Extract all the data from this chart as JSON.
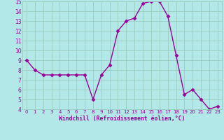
{
  "x": [
    0,
    1,
    2,
    3,
    4,
    5,
    6,
    7,
    8,
    9,
    10,
    11,
    12,
    13,
    14,
    15,
    16,
    17,
    18,
    19,
    20,
    21,
    22,
    23
  ],
  "y": [
    9.0,
    8.0,
    7.5,
    7.5,
    7.5,
    7.5,
    7.5,
    7.5,
    5.0,
    7.5,
    8.5,
    12.0,
    13.0,
    13.3,
    14.8,
    15.0,
    15.0,
    13.5,
    9.5,
    5.5,
    6.0,
    5.0,
    4.0,
    4.3
  ],
  "line_color": "#990099",
  "marker": "D",
  "marker_size": 2.5,
  "bg_color": "#b3e8e8",
  "grid_color": "#99ccbb",
  "xlabel": "Windchill (Refroidissement éolien,°C)",
  "xlabel_color": "#990099",
  "tick_color": "#990099",
  "ylim": [
    4,
    15
  ],
  "xlim": [
    -0.5,
    23.5
  ],
  "yticks": [
    4,
    5,
    6,
    7,
    8,
    9,
    10,
    11,
    12,
    13,
    14,
    15
  ],
  "figsize": [
    3.2,
    2.0
  ],
  "dpi": 100
}
